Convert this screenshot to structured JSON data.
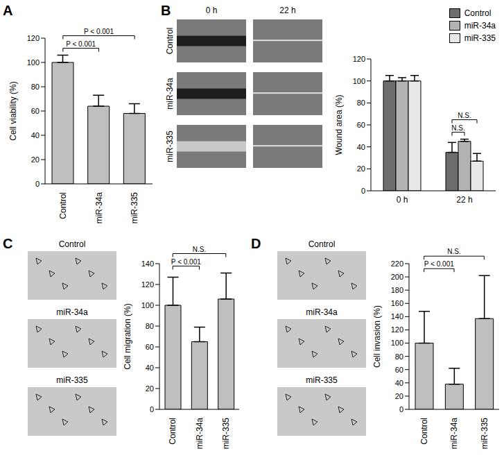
{
  "chart_data": [
    {
      "panel": "A",
      "type": "bar",
      "categories": [
        "Control",
        "miR-34a",
        "miR-335"
      ],
      "values": [
        100,
        64,
        58
      ],
      "errors": [
        6,
        9,
        8
      ],
      "color": "#bfbfbf",
      "ylabel": "Cell viability (%)",
      "ylim": [
        0,
        120
      ],
      "yticks": [
        0,
        20,
        40,
        60,
        80,
        100,
        120
      ],
      "annotations": [
        {
          "from": "Control",
          "to": "miR-34a",
          "text": "P < 0.001"
        },
        {
          "from": "Control",
          "to": "miR-335",
          "text": "P < 0.001"
        }
      ]
    },
    {
      "panel": "B",
      "type": "bar",
      "categories": [
        "0 h",
        "22 h"
      ],
      "series": [
        {
          "name": "Control",
          "color": "#6d6d6d",
          "values": [
            100,
            35
          ],
          "errors": [
            5,
            9
          ]
        },
        {
          "name": "miR-34a",
          "color": "#b3b3b3",
          "values": [
            100,
            45
          ],
          "errors": [
            3,
            2
          ]
        },
        {
          "name": "miR-335",
          "color": "#e8e8e8",
          "values": [
            100,
            27
          ],
          "errors": [
            5,
            7
          ]
        }
      ],
      "ylabel": "Wound area (%)",
      "ylim": [
        0,
        120
      ],
      "yticks": [
        0,
        20,
        40,
        60,
        80,
        100,
        120
      ],
      "legend": "top-right",
      "annotations": [
        {
          "category": "22 h",
          "from": "Control",
          "to": "miR-34a",
          "text": "N.S."
        },
        {
          "category": "22 h",
          "from": "Control",
          "to": "miR-335",
          "text": "N.S."
        }
      ]
    },
    {
      "panel": "C",
      "type": "bar",
      "categories": [
        "Control",
        "miR-34a",
        "miR-335"
      ],
      "values": [
        100,
        65,
        106
      ],
      "errors": [
        27,
        14,
        25
      ],
      "color": "#bfbfbf",
      "ylabel": "Cell migration (%)",
      "ylim": [
        0,
        140
      ],
      "yticks": [
        0,
        20,
        40,
        60,
        80,
        100,
        120,
        140
      ],
      "annotations": [
        {
          "from": "Control",
          "to": "miR-34a",
          "text": "P < 0.001"
        },
        {
          "from": "Control",
          "to": "miR-335",
          "text": "N.S."
        }
      ]
    },
    {
      "panel": "D",
      "type": "bar",
      "categories": [
        "Control",
        "miR-34a",
        "miR-335"
      ],
      "values": [
        100,
        38,
        137
      ],
      "errors": [
        48,
        24,
        65
      ],
      "color": "#bfbfbf",
      "ylabel": "Cell invasion (%)",
      "ylim": [
        0,
        220
      ],
      "yticks": [
        0,
        20,
        40,
        60,
        80,
        100,
        120,
        140,
        160,
        180,
        200,
        220
      ],
      "annotations": [
        {
          "from": "Control",
          "to": "miR-34a",
          "text": "P < 0.001"
        },
        {
          "from": "Control",
          "to": "miR-335",
          "text": "N.S."
        }
      ]
    }
  ],
  "image_panels": {
    "B": {
      "columns": [
        "0 h",
        "22 h"
      ],
      "rows": [
        "Control",
        "miR-34a",
        "miR-335"
      ]
    },
    "C": {
      "rows": [
        "Control",
        "miR-34a",
        "miR-335"
      ]
    },
    "D": {
      "rows": [
        "Control",
        "miR-34a",
        "miR-335"
      ]
    }
  }
}
